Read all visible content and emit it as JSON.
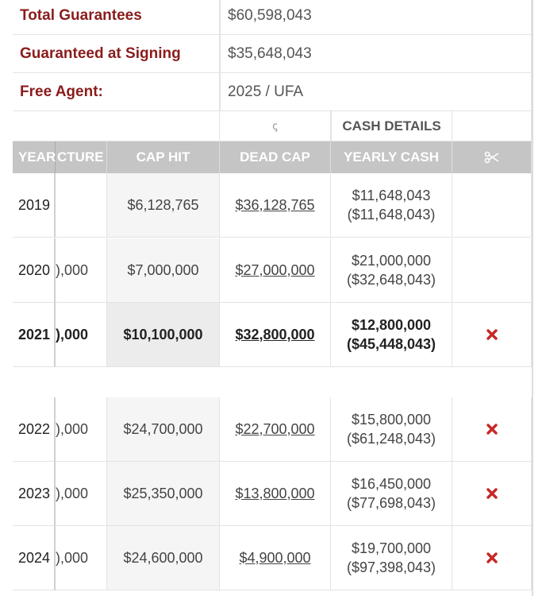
{
  "info": [
    {
      "label": "Total Guarantees",
      "value": "$60,598,043"
    },
    {
      "label": "Guaranteed at Signing",
      "value": "$35,648,043"
    },
    {
      "label": "Free Agent:",
      "value": "2025 / UFA"
    }
  ],
  "table": {
    "group_headers": [
      "ꞔ",
      "CASH DETAILS"
    ],
    "headers": [
      "YEAR",
      "CTURE",
      "CAP HIT",
      "DEAD CAP",
      "YEARLY CASH"
    ],
    "rows": [
      [
        "2019",
        "",
        "$6,128,765",
        "$36,128,765",
        "$11,648,043",
        "($11,648,043)"
      ],
      [
        "2020",
        "),000",
        "$7,000,000",
        "$27,000,000",
        "$21,000,000",
        "($32,648,043)"
      ],
      [
        "2021",
        "),000",
        "$10,100,000",
        "$32,800,000",
        "$12,800,000",
        "($45,448,043)"
      ],
      [
        "2022",
        "),000",
        "$24,700,000",
        "$22,700,000",
        "$15,800,000",
        "($61,248,043)"
      ],
      [
        "2023",
        "),000",
        "$25,350,000",
        "$13,800,000",
        "$16,450,000",
        "($77,698,043)"
      ],
      [
        "2024",
        "),000",
        "$24,600,000",
        "$4,900,000",
        "$19,700,000",
        "($97,398,043)"
      ]
    ]
  }
}
